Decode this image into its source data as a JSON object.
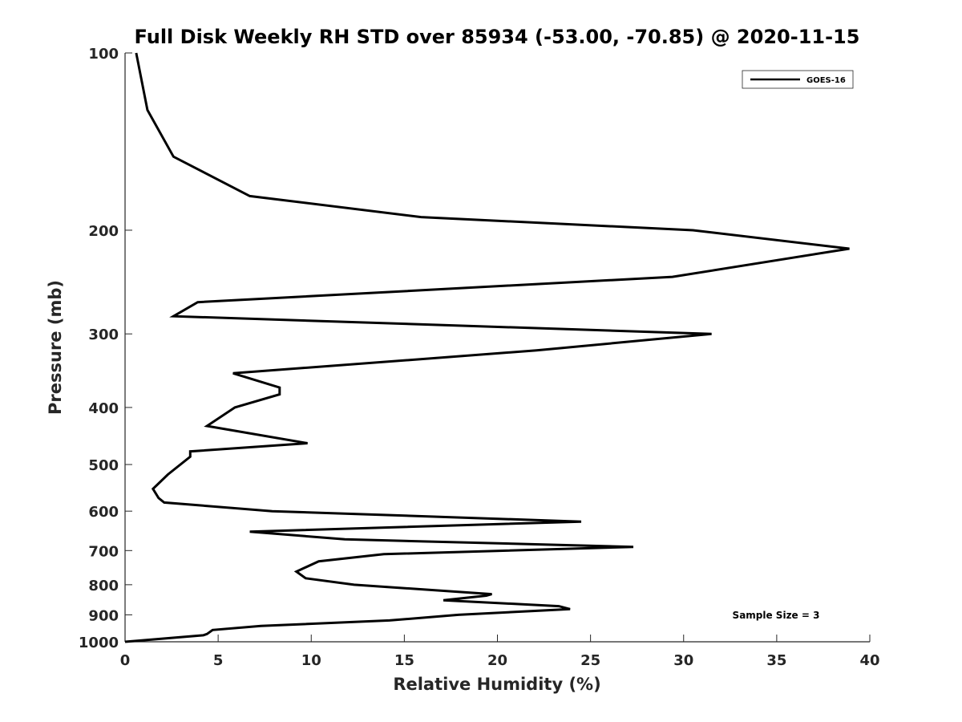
{
  "chart_data": {
    "type": "line",
    "title": "Full Disk Weekly RH STD over 85934 (-53.00, -70.85) @ 2020-11-15",
    "xlabel": "Relative Humidity (%)",
    "ylabel": "Pressure (mb)",
    "xlim": [
      0,
      40
    ],
    "ylim": [
      100,
      1000
    ],
    "y_scale": "log",
    "y_reversed": true,
    "x_ticks": [
      0,
      5,
      10,
      15,
      20,
      25,
      30,
      35,
      40
    ],
    "y_ticks": [
      100,
      200,
      300,
      400,
      500,
      600,
      700,
      800,
      900,
      1000
    ],
    "grid": false,
    "legend_position": "top-right",
    "annotation": "Sample Size = 3",
    "series": [
      {
        "name": "GOES-16",
        "color": "#000000",
        "points": [
          [
            0.6,
            100
          ],
          [
            1.2,
            125
          ],
          [
            2.6,
            150
          ],
          [
            6.7,
            175
          ],
          [
            15.9,
            190
          ],
          [
            30.5,
            200
          ],
          [
            38.9,
            215
          ],
          [
            29.4,
            240
          ],
          [
            3.9,
            265
          ],
          [
            2.6,
            280
          ],
          [
            31.5,
            300
          ],
          [
            22.1,
            320
          ],
          [
            5.8,
            350
          ],
          [
            8.3,
            370
          ],
          [
            8.3,
            380
          ],
          [
            5.9,
            400
          ],
          [
            4.4,
            430
          ],
          [
            9.8,
            460
          ],
          [
            3.5,
            475
          ],
          [
            3.5,
            485
          ],
          [
            2.3,
            520
          ],
          [
            1.5,
            550
          ],
          [
            1.8,
            570
          ],
          [
            2.1,
            580
          ],
          [
            7.9,
            600
          ],
          [
            24.5,
            625
          ],
          [
            6.7,
            650
          ],
          [
            11.8,
            670
          ],
          [
            27.3,
            690
          ],
          [
            13.9,
            710
          ],
          [
            10.4,
            730
          ],
          [
            9.2,
            760
          ],
          [
            9.7,
            780
          ],
          [
            12.3,
            800
          ],
          [
            19.7,
            830
          ],
          [
            19.4,
            835
          ],
          [
            17.1,
            850
          ],
          [
            23.3,
            870
          ],
          [
            23.9,
            880
          ],
          [
            17.9,
            900
          ],
          [
            14.2,
            920
          ],
          [
            7.3,
            940
          ],
          [
            4.7,
            955
          ],
          [
            4.4,
            970
          ],
          [
            4.2,
            975
          ],
          [
            0.0,
            1000
          ]
        ]
      }
    ]
  }
}
